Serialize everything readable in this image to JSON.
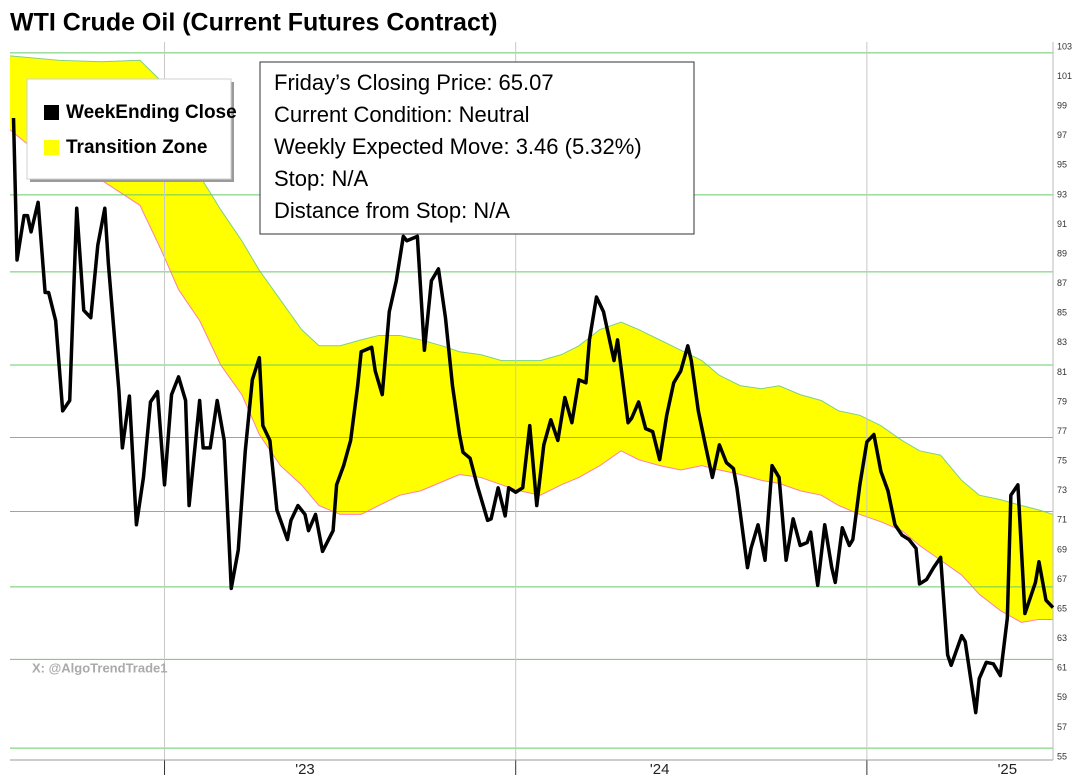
{
  "chart_data": {
    "type": "line",
    "title": "WTI Crude Oil (Current Futures Contract)",
    "xlim": [
      2022.56,
      2025.53
    ],
    "xticks": [
      {
        "value": 2023.4,
        "label": "'23"
      },
      {
        "value": 2024.41,
        "label": "'24"
      },
      {
        "value": 2025.4,
        "label": "'25"
      }
    ],
    "xgrid": [
      2023,
      2024,
      2025
    ],
    "ylim": [
      55,
      103
    ],
    "yticks": [
      55,
      57,
      59,
      61,
      63,
      65,
      67,
      69,
      71,
      73,
      75,
      77,
      79,
      81,
      83,
      85,
      87,
      89,
      91,
      93,
      95,
      97,
      99,
      101,
      103
    ],
    "ygrid": [
      55.6,
      61.6,
      66.5,
      71.6,
      76.6,
      81.5,
      87.8,
      93.0,
      102.6
    ],
    "grid_color": "#66cc66",
    "legend": "upper left",
    "series": [
      {
        "name": "WeekEnding Close",
        "color": "#000000",
        "x": [
          2022.57,
          2022.58,
          2022.6,
          2022.61,
          2022.62,
          2022.64,
          2022.66,
          2022.67,
          2022.69,
          2022.71,
          2022.73,
          2022.75,
          2022.77,
          2022.79,
          2022.81,
          2022.83,
          2022.84,
          2022.87,
          2022.88,
          2022.9,
          2022.92,
          2022.94,
          2022.96,
          2022.98,
          2023.0,
          2023.02,
          2023.04,
          2023.06,
          2023.07,
          2023.1,
          2023.11,
          2023.13,
          2023.15,
          2023.17,
          2023.19,
          2023.21,
          2023.23,
          2023.25,
          2023.27,
          2023.28,
          2023.3,
          2023.32,
          2023.35,
          2023.36,
          2023.38,
          2023.4,
          2023.41,
          2023.43,
          2023.45,
          2023.48,
          2023.49,
          2023.51,
          2023.53,
          2023.55,
          2023.56,
          2023.59,
          2023.6,
          2023.62,
          2023.64,
          2023.66,
          2023.68,
          2023.69,
          2023.72,
          2023.74,
          2023.76,
          2023.78,
          2023.8,
          2023.82,
          2023.84,
          2023.85,
          2023.87,
          2023.89,
          2023.92,
          2023.93,
          2023.95,
          2023.97,
          2023.98,
          2024.0,
          2024.02,
          2024.04,
          2024.06,
          2024.08,
          2024.1,
          2024.12,
          2024.14,
          2024.16,
          2024.18,
          2024.2,
          2024.21,
          2024.23,
          2024.25,
          2024.28,
          2024.29,
          2024.32,
          2024.33,
          2024.35,
          2024.37,
          2024.39,
          2024.41,
          2024.43,
          2024.45,
          2024.47,
          2024.49,
          2024.5,
          2024.52,
          2024.54,
          2024.56,
          2024.58,
          2024.6,
          2024.62,
          2024.63,
          2024.66,
          2024.67,
          2024.69,
          2024.71,
          2024.73,
          2024.75,
          2024.77,
          2024.79,
          2024.81,
          2024.83,
          2024.84,
          2024.86,
          2024.88,
          2024.9,
          2024.91,
          2024.93,
          2024.95,
          2024.96,
          2024.98,
          2025.0,
          2025.02,
          2025.04,
          2025.06,
          2025.08,
          2025.1,
          2025.12,
          2025.14,
          2025.15,
          2025.17,
          2025.19,
          2025.21,
          2025.23,
          2025.24,
          2025.27,
          2025.28,
          2025.31,
          2025.32,
          2025.34,
          2025.36,
          2025.38,
          2025.4,
          2025.41,
          2025.43,
          2025.45,
          2025.48,
          2025.49,
          2025.51,
          2025.53
        ],
        "values": [
          98.2,
          88.6,
          91.6,
          91.6,
          90.5,
          92.5,
          86.4,
          86.4,
          84.5,
          78.4,
          79.1,
          92.1,
          85.2,
          84.7,
          89.6,
          92.1,
          88.4,
          79.8,
          75.9,
          79.4,
          70.7,
          73.9,
          79.0,
          79.7,
          73.4,
          79.5,
          80.7,
          79.1,
          72.0,
          79.1,
          75.9,
          75.9,
          79.1,
          76.4,
          66.4,
          69.0,
          75.7,
          80.5,
          82.0,
          77.4,
          76.4,
          71.7,
          69.7,
          71.0,
          72.0,
          71.4,
          70.3,
          71.4,
          68.9,
          70.3,
          73.4,
          74.7,
          76.4,
          80.1,
          82.4,
          82.7,
          81.1,
          79.5,
          85.1,
          87.2,
          90.2,
          89.9,
          90.2,
          82.5,
          87.2,
          88.0,
          84.7,
          80.1,
          76.8,
          75.6,
          75.2,
          73.4,
          71.0,
          71.1,
          73.2,
          71.3,
          73.2,
          72.9,
          73.2,
          77.4,
          72.0,
          76.1,
          77.8,
          76.4,
          79.3,
          77.6,
          80.5,
          80.3,
          83.2,
          86.1,
          85.1,
          81.8,
          83.2,
          77.6,
          77.9,
          79.0,
          77.2,
          77.0,
          75.1,
          78.1,
          80.3,
          81.1,
          82.8,
          81.8,
          78.4,
          76.1,
          73.9,
          76.1,
          74.9,
          74.5,
          73.2,
          67.8,
          69.1,
          70.7,
          68.3,
          74.7,
          73.9,
          68.3,
          71.1,
          69.3,
          69.5,
          70.2,
          66.6,
          70.7,
          67.8,
          66.8,
          70.5,
          69.3,
          69.7,
          73.4,
          76.3,
          76.8,
          74.3,
          73.0,
          70.7,
          70.0,
          69.7,
          69.1,
          66.7,
          67.0,
          67.8,
          68.5,
          61.9,
          61.2,
          63.2,
          62.8,
          58.0,
          60.3,
          61.4,
          61.3,
          60.5,
          64.4,
          72.7,
          73.4,
          64.7,
          66.8,
          68.2,
          65.6,
          65.1
        ]
      }
    ],
    "band": {
      "name": "Transition Zone",
      "color": "#ffff00",
      "high_color": "#7fd07f",
      "low_color": "#ff7faa",
      "x": [
        2022.56,
        2022.7,
        2022.82,
        2022.93,
        2022.99,
        2023.04,
        2023.1,
        2023.16,
        2023.22,
        2023.27,
        2023.33,
        2023.39,
        2023.44,
        2023.5,
        2023.56,
        2023.61,
        2023.67,
        2023.73,
        2023.79,
        2023.84,
        2023.9,
        2023.96,
        2024.01,
        2024.07,
        2024.13,
        2024.18,
        2024.24,
        2024.3,
        2024.35,
        2024.41,
        2024.47,
        2024.53,
        2024.58,
        2024.64,
        2024.7,
        2024.75,
        2024.81,
        2024.87,
        2024.92,
        2024.98,
        2025.04,
        2025.1,
        2025.15,
        2025.21,
        2025.27,
        2025.32,
        2025.38,
        2025.44,
        2025.49,
        2025.53
      ],
      "high": [
        102.4,
        102.1,
        102.0,
        102.1,
        100.7,
        97.4,
        94.3,
        92.0,
        89.9,
        87.9,
        85.9,
        83.9,
        82.8,
        82.8,
        83.2,
        83.5,
        83.5,
        83.2,
        82.8,
        82.4,
        82.2,
        81.8,
        81.8,
        81.8,
        82.2,
        82.8,
        83.9,
        84.4,
        83.9,
        83.2,
        82.5,
        81.8,
        80.8,
        80.1,
        79.9,
        80.1,
        79.5,
        79.1,
        78.4,
        78.1,
        77.4,
        76.4,
        75.7,
        75.4,
        73.7,
        72.7,
        72.4,
        72.0,
        71.7,
        71.4
      ],
      "low": [
        97.4,
        94.7,
        94.0,
        92.3,
        89.3,
        86.6,
        84.5,
        81.5,
        79.5,
        76.8,
        74.7,
        73.4,
        72.0,
        71.4,
        71.4,
        72.0,
        72.7,
        73.0,
        73.6,
        74.1,
        73.9,
        73.4,
        73.0,
        72.7,
        73.4,
        73.9,
        74.7,
        75.7,
        75.1,
        74.7,
        74.4,
        74.7,
        74.4,
        74.1,
        73.7,
        73.5,
        73.0,
        72.7,
        72.0,
        71.4,
        70.9,
        70.3,
        69.3,
        68.3,
        67.3,
        66.0,
        64.9,
        64.1,
        64.3,
        64.3
      ]
    }
  },
  "info_box": {
    "lines": [
      "Friday’s Closing Price: 65.07",
      "Current Condition: Neutral",
      "Weekly Expected Move: 3.46 (5.32%)",
      "Stop: N/A",
      "Distance from Stop: N/A"
    ]
  },
  "watermark": "X: @AlgoTrendTrade1"
}
